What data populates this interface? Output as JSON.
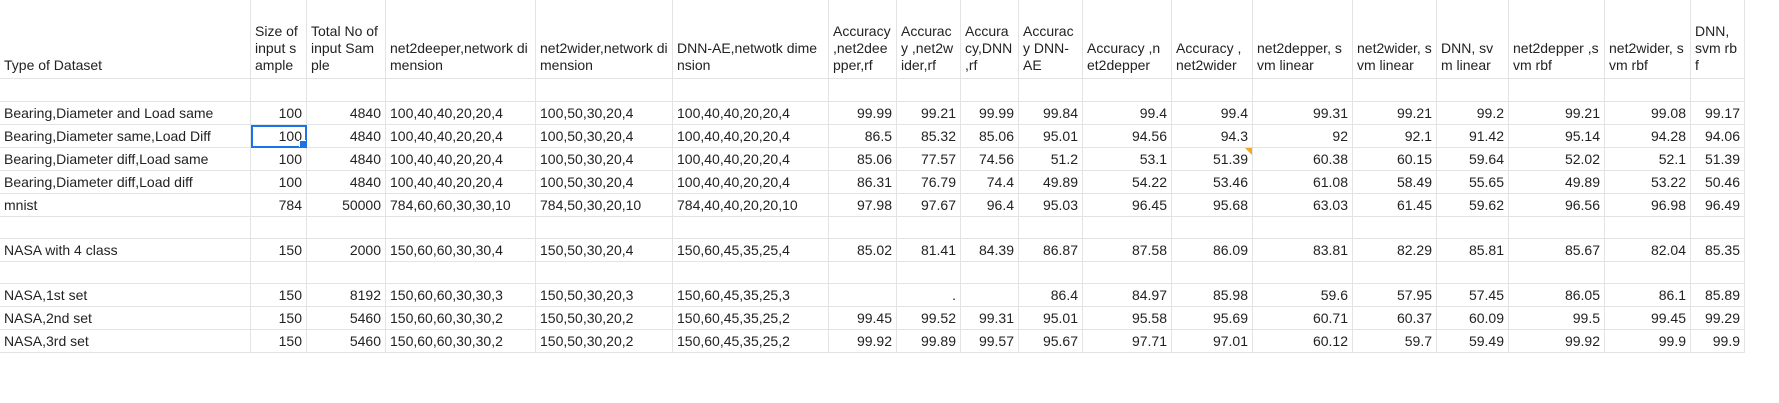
{
  "sheet": {
    "headers": [
      "Type of Dataset",
      "Size of input sample",
      "Total No of input Sample",
      "net2deeper,network dimension",
      "net2wider,network dimension",
      "DNN-AE,netwotk dimension",
      "Accuracy ,net2deepper,rf",
      "Accuracy ,net2wider,rf",
      "Accuracy,DNN ,rf",
      "Accuracy DNN-AE",
      "Accuracy ,net2depper",
      "Accuracy ,net2wider",
      "net2depper, svm linear",
      "net2wider, svm linear",
      "DNN, svm linear",
      "net2depper ,svm rbf",
      "net2wider, svm rbf",
      "DNN, svm rbf"
    ],
    "rows": [
      [
        "",
        "",
        "",
        "",
        "",
        "",
        "",
        "",
        "",
        "",
        "",
        "",
        "",
        "",
        "",
        "",
        "",
        ""
      ],
      [
        "Bearing,Diameter and Load same",
        "100",
        "4840",
        "100,40,40,20,20,4",
        "100,50,30,20,4",
        "100,40,40,20,20,4",
        "99.99",
        "99.21",
        "99.99",
        "99.84",
        "99.4",
        "99.4",
        "99.31",
        "99.21",
        "99.2",
        "99.21",
        "99.08",
        "99.17"
      ],
      [
        "Bearing,Diameter same,Load Diff",
        "100",
        "4840",
        "100,40,40,20,20,4",
        "100,50,30,20,4",
        "100,40,40,20,20,4",
        "86.5",
        "85.32",
        "85.06",
        "95.01",
        "94.56",
        "94.3",
        "92",
        "92.1",
        "91.42",
        "95.14",
        "94.28",
        "94.06"
      ],
      [
        "Bearing,Diameter diff,Load same",
        "100",
        "4840",
        "100,40,40,20,20,4",
        "100,50,30,20,4",
        "100,40,40,20,20,4",
        "85.06",
        "77.57",
        "74.56",
        "51.2",
        "53.1",
        "51.39",
        "60.38",
        "60.15",
        "59.64",
        "52.02",
        "52.1",
        "51.39"
      ],
      [
        "Bearing,Diameter diff,Load diff",
        "100",
        "4840",
        "100,40,40,20,20,4",
        "100,50,30,20,4",
        "100,40,40,20,20,4",
        "86.31",
        "76.79",
        "74.4",
        "49.89",
        "54.22",
        "53.46",
        "61.08",
        "58.49",
        "55.65",
        "49.89",
        "53.22",
        "50.46"
      ],
      [
        "mnist",
        "784",
        "50000",
        "784,60,60,30,30,10",
        "784,50,30,20,10",
        "784,40,40,20,20,10",
        "97.98",
        "97.67",
        "96.4",
        "95.03",
        "96.45",
        "95.68",
        "63.03",
        "61.45",
        "59.62",
        "96.56",
        "96.98",
        "96.49"
      ],
      [
        "",
        "",
        "",
        "",
        "",
        "",
        "",
        "",
        "",
        "",
        "",
        "",
        "",
        "",
        "",
        "",
        "",
        ""
      ],
      [
        "NASA with 4 class",
        "150",
        "2000",
        "150,60,60,30,30,4",
        "150,50,30,20,4",
        "150,60,45,35,25,4",
        "85.02",
        "81.41",
        "84.39",
        "86.87",
        "87.58",
        "86.09",
        "83.81",
        "82.29",
        "85.81",
        "85.67",
        "82.04",
        "85.35"
      ],
      [
        "",
        "",
        "",
        "",
        "",
        "",
        "",
        "",
        "",
        "",
        "",
        "",
        "",
        "",
        "",
        "",
        "",
        ""
      ],
      [
        "NASA,1st set",
        "150",
        "8192",
        "150,60,60,30,30,3",
        "150,50,30,20,3",
        "150,60,45,35,25,3",
        "",
        ".",
        "",
        "86.4",
        "84.97",
        "85.98",
        "59.6",
        "57.95",
        "57.45",
        "86.05",
        "86.1",
        "85.89"
      ],
      [
        "NASA,2nd set",
        "150",
        "5460",
        "150,60,60,30,30,2",
        "150,50,30,20,2",
        "150,60,45,35,25,2",
        "99.45",
        "99.52",
        "99.31",
        "95.01",
        "95.58",
        "95.69",
        "60.71",
        "60.37",
        "60.09",
        "99.5",
        "99.45",
        "99.29"
      ],
      [
        "NASA,3rd set",
        "150",
        "5460",
        "150,60,60,30,30,2",
        "150,50,30,20,2",
        "150,60,45,35,25,2",
        "99.92",
        "99.89",
        "99.57",
        "95.67",
        "97.71",
        "97.01",
        "60.12",
        "59.7",
        "59.49",
        "99.92",
        "99.9",
        "99.9"
      ]
    ],
    "selected_cell": [
      2,
      1
    ],
    "note_cell": [
      3,
      11
    ],
    "selection_color": "#1a73e8",
    "note_color": "#f5a623",
    "gridline_color": "#e2e3e3"
  }
}
